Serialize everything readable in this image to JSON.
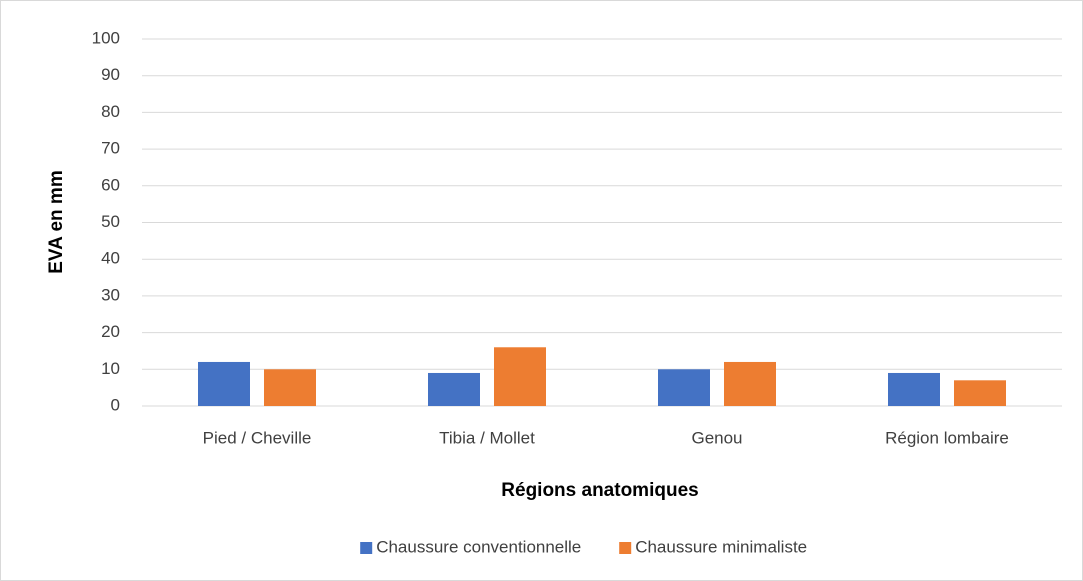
{
  "chart_data": {
    "type": "bar",
    "x_label": "Régions anatomiques",
    "y_label": "EVA en mm",
    "categories": [
      "Pied / Cheville",
      "Tibia / Mollet",
      "Genou",
      "Région lombaire"
    ],
    "series": [
      {
        "name": "Chaussure conventionnelle",
        "color": "#4472c4",
        "values": [
          12,
          9,
          10,
          9
        ]
      },
      {
        "name": "Chaussure minimaliste",
        "color": "#ed7d31",
        "values": [
          10,
          16,
          12,
          7
        ]
      }
    ],
    "ylim": [
      0,
      100
    ],
    "yticks": [
      0,
      10,
      20,
      30,
      40,
      50,
      60,
      70,
      80,
      90,
      100
    ],
    "grid": true,
    "legend": "bottom"
  }
}
